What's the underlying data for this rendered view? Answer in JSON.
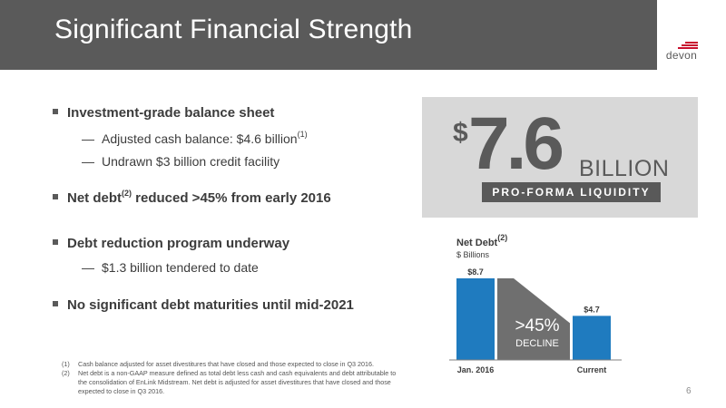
{
  "header": {
    "title": "Significant Financial Strength",
    "logo_text": "devon"
  },
  "bullets": [
    {
      "text": "Investment-grade balance sheet",
      "sup": ""
    },
    {
      "text": "Adjusted cash balance: $4.6 billion",
      "sup": "(1)"
    },
    {
      "text": "Undrawn $3 billion credit facility",
      "sup": ""
    },
    {
      "text": "Net debt",
      "sup": "(2)",
      "after": " reduced >45% from early 2016"
    },
    {
      "text": "Debt reduction program underway",
      "sup": ""
    },
    {
      "text": "$1.3 billion tendered to date",
      "sup": ""
    },
    {
      "text": "No significant debt maturities until mid-2021",
      "sup": ""
    }
  ],
  "dash": "—",
  "liquidity": {
    "dollar": "$",
    "amount": "7.6",
    "unit": "BILLION",
    "label": "PRO-FORMA LIQUIDITY"
  },
  "chart": {
    "title": "Net Debt",
    "title_sup": "(2)",
    "subtitle": "$ Billions",
    "decline_pct": ">45%",
    "decline_word": "DECLINE"
  },
  "chart_data": {
    "type": "bar",
    "title": "Net Debt(2)",
    "ylabel": "$ Billions",
    "categories": [
      "Jan. 2016",
      "Current"
    ],
    "values": [
      8.7,
      4.7
    ],
    "data_labels": [
      "$8.7",
      "$4.7"
    ],
    "annotation": ">45% DECLINE",
    "colors": {
      "bar": "#1f7bbf",
      "connector": "#6f6f6f",
      "axis": "#7f7f7f"
    }
  },
  "footnotes": [
    {
      "num": "(1)",
      "text": "Cash balance adjusted for asset divestitures that have closed and those expected to close in Q3 2016."
    },
    {
      "num": "(2)",
      "text": "Net debt is a non-GAAP measure defined as total debt less cash and cash equivalents and debt attributable to the consolidation of EnLink Midstream. Net debt is adjusted for asset divestitures that have closed and those expected to close in Q3 2016."
    }
  ],
  "page_number": "6",
  "colors": {
    "title_bar": "#5a5a5a",
    "accent_red": "#c8102e",
    "bar_blue": "#1f7bbf"
  }
}
